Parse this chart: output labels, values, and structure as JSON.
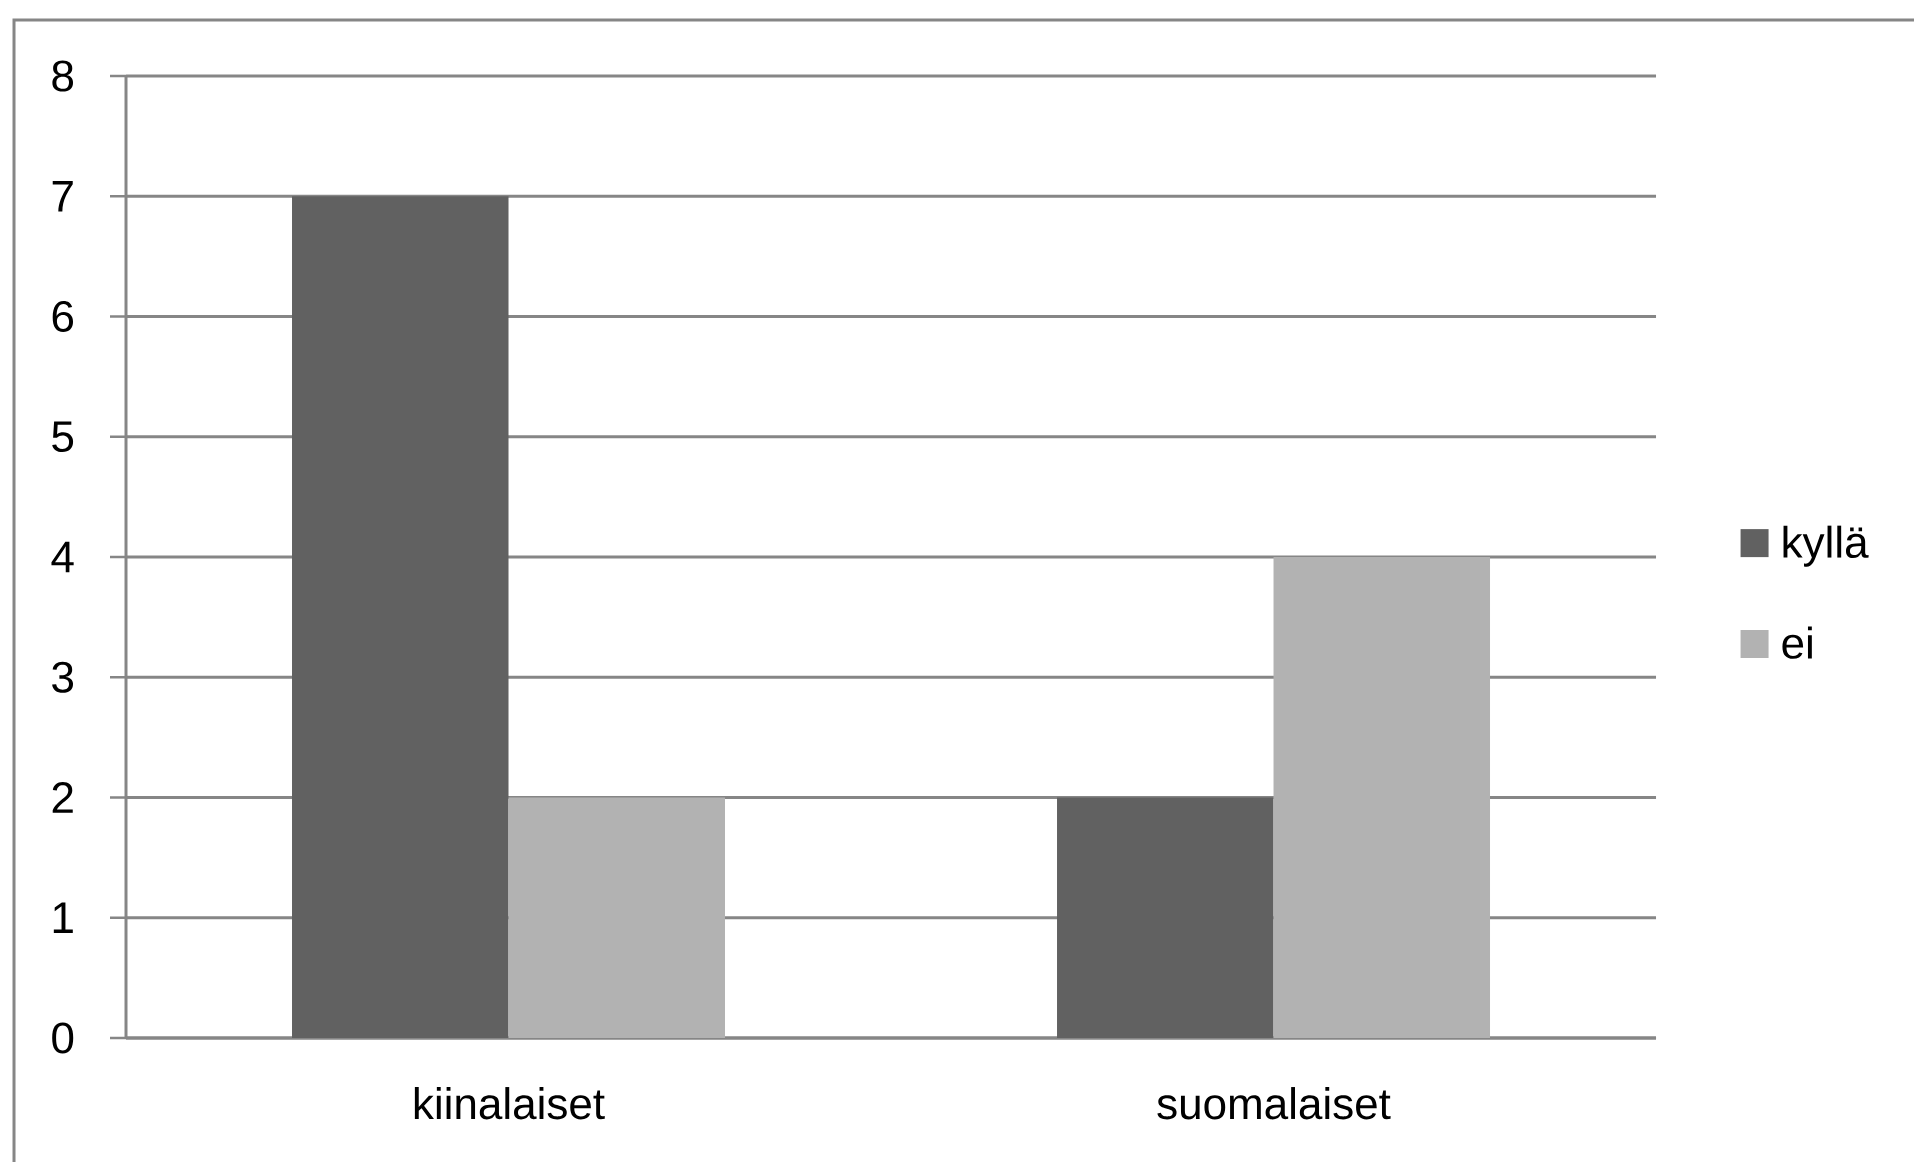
{
  "chart_data": {
    "type": "bar",
    "categories": [
      "kiinalaiset",
      "suomalaiset"
    ],
    "series": [
      {
        "name": "kyllä",
        "color": "#616161",
        "values": [
          7,
          2
        ]
      },
      {
        "name": "ei",
        "color": "#b2b2b2",
        "values": [
          2,
          4
        ]
      }
    ],
    "ylim": [
      0,
      8
    ],
    "yticks": [
      0,
      1,
      2,
      3,
      4,
      5,
      6,
      7,
      8
    ],
    "grid": "y",
    "legend": "right"
  }
}
